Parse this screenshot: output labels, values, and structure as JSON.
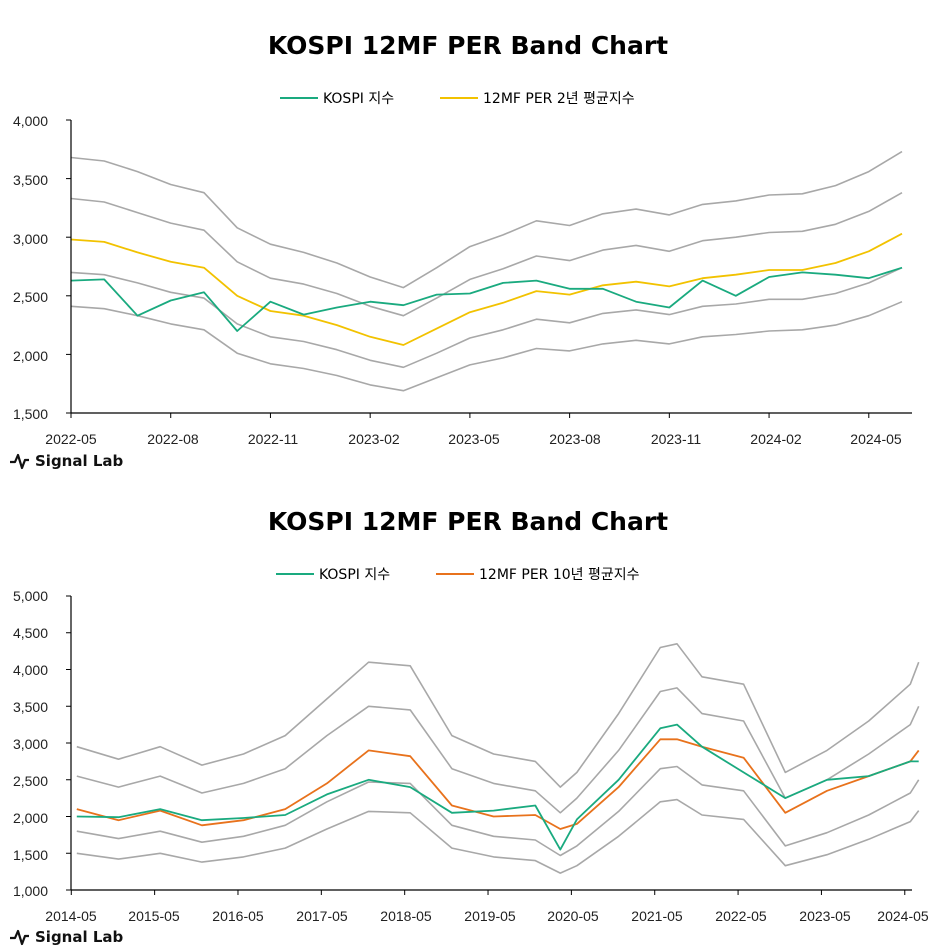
{
  "brand": {
    "name": "Signal Lab"
  },
  "charts": [
    {
      "title": "KOSPI 12MF PER Band Chart",
      "legend": [
        "KOSPI 지수",
        "12MF PER 2년 평균지수"
      ],
      "y_ticks": [
        "4,000",
        "3,500",
        "3,000",
        "2,500",
        "2,000",
        "1,500"
      ],
      "x_ticks": [
        "2022-05",
        "2022-08",
        "2022-11",
        "2023-02",
        "2023-05",
        "2023-08",
        "2023-11",
        "2024-02",
        "2024-05"
      ]
    },
    {
      "title": "KOSPI 12MF PER Band Chart",
      "legend": [
        "KOSPI 지수",
        "12MF PER 10년 평균지수"
      ],
      "y_ticks": [
        "5,000",
        "4,500",
        "4,000",
        "3,500",
        "3,000",
        "2,500",
        "2,000",
        "1,500",
        "1,000"
      ],
      "x_ticks": [
        "2014-05",
        "2015-05",
        "2016-05",
        "2017-05",
        "2018-05",
        "2019-05",
        "2020-05",
        "2021-05",
        "2022-05",
        "2023-05",
        "2024-05"
      ]
    }
  ],
  "colors": {
    "kospi": "#1aaa7f",
    "avg2y": "#f2c200",
    "avg10y": "#e8721c",
    "band": "#a8a8a8",
    "axis": "#000000"
  },
  "icons": {
    "brand_logo": "pulse-icon"
  },
  "chart_data": [
    {
      "type": "line",
      "title": "KOSPI 12MF PER Band Chart",
      "x_unit": "month",
      "x": [
        "2022-05",
        "2022-06",
        "2022-07",
        "2022-08",
        "2022-09",
        "2022-10",
        "2022-11",
        "2022-12",
        "2023-01",
        "2023-02",
        "2023-03",
        "2023-04",
        "2023-05",
        "2023-06",
        "2023-07",
        "2023-08",
        "2023-09",
        "2023-10",
        "2023-11",
        "2023-12",
        "2024-01",
        "2024-02",
        "2024-03",
        "2024-04",
        "2024-05",
        "2024-06"
      ],
      "ylim": [
        1500,
        4000
      ],
      "y_ticks": [
        1500,
        2000,
        2500,
        3000,
        3500,
        4000
      ],
      "series": [
        {
          "name": "KOSPI 지수",
          "color": "#1aaa7f",
          "values": [
            2630,
            2640,
            2330,
            2460,
            2530,
            2200,
            2450,
            2340,
            2400,
            2450,
            2420,
            2510,
            2520,
            2610,
            2630,
            2560,
            2560,
            2450,
            2400,
            2630,
            2500,
            2660,
            2700,
            2680,
            2650,
            2740
          ]
        },
        {
          "name": "12MF PER 2년 평균지수",
          "color": "#f2c200",
          "values": [
            2980,
            2960,
            2870,
            2790,
            2740,
            2500,
            2370,
            2330,
            2250,
            2150,
            2080,
            2220,
            2360,
            2440,
            2540,
            2510,
            2590,
            2620,
            2580,
            2650,
            2680,
            2720,
            2720,
            2780,
            2880,
            3030
          ]
        },
        {
          "name": "",
          "color": "#a8a8a8",
          "values": [
            3680,
            3650,
            3560,
            3450,
            3380,
            3080,
            2940,
            2870,
            2780,
            2660,
            2570,
            2740,
            2920,
            3020,
            3140,
            3100,
            3200,
            3240,
            3190,
            3280,
            3310,
            3360,
            3370,
            3440,
            3560,
            3730
          ]
        },
        {
          "name": "",
          "color": "#a8a8a8",
          "values": [
            3330,
            3300,
            3210,
            3120,
            3060,
            2790,
            2650,
            2600,
            2520,
            2410,
            2330,
            2480,
            2640,
            2730,
            2840,
            2800,
            2890,
            2930,
            2880,
            2970,
            3000,
            3040,
            3050,
            3110,
            3220,
            3380
          ]
        },
        {
          "name": "",
          "color": "#a8a8a8",
          "values": [
            2700,
            2680,
            2610,
            2530,
            2480,
            2260,
            2150,
            2110,
            2040,
            1950,
            1890,
            2010,
            2140,
            2210,
            2300,
            2270,
            2350,
            2380,
            2340,
            2410,
            2430,
            2470,
            2470,
            2520,
            2610,
            2740
          ]
        },
        {
          "name": "",
          "color": "#a8a8a8",
          "values": [
            2410,
            2390,
            2330,
            2260,
            2210,
            2010,
            1920,
            1880,
            1820,
            1740,
            1690,
            1800,
            1910,
            1970,
            2050,
            2030,
            2090,
            2120,
            2090,
            2150,
            2170,
            2200,
            2210,
            2250,
            2330,
            2450
          ]
        }
      ]
    },
    {
      "type": "line",
      "title": "KOSPI 12MF PER Band Chart",
      "x_unit": "year",
      "x": [
        2014.4,
        2014.9,
        2015.4,
        2015.9,
        2016.4,
        2016.9,
        2017.4,
        2017.9,
        2018.4,
        2018.9,
        2019.4,
        2019.9,
        2020.2,
        2020.4,
        2020.9,
        2021.4,
        2021.6,
        2021.9,
        2022.4,
        2022.9,
        2023.4,
        2023.9,
        2024.4,
        2024.5
      ],
      "ylim": [
        1000,
        5000
      ],
      "y_ticks": [
        1000,
        1500,
        2000,
        2500,
        3000,
        3500,
        4000,
        4500,
        5000
      ],
      "series": [
        {
          "name": "KOSPI 지수",
          "color": "#1aaa7f",
          "values": [
            2000,
            1990,
            2100,
            1950,
            1980,
            2020,
            2300,
            2500,
            2400,
            2050,
            2080,
            2150,
            1550,
            1960,
            2500,
            3200,
            3250,
            2950,
            2600,
            2250,
            2500,
            2550,
            2750,
            2750
          ]
        },
        {
          "name": "12MF PER 10년 평균지수",
          "color": "#e8721c",
          "values": [
            2100,
            1950,
            2080,
            1880,
            1950,
            2100,
            2450,
            2900,
            2820,
            2150,
            2000,
            2020,
            1830,
            1900,
            2400,
            3050,
            3050,
            2950,
            2800,
            2050,
            2350,
            2550,
            2750,
            2900
          ]
        },
        {
          "name": "",
          "color": "#a8a8a8",
          "values": [
            2950,
            2780,
            2950,
            2700,
            2850,
            3100,
            3600,
            4100,
            4050,
            3100,
            2850,
            2750,
            2400,
            2600,
            3400,
            4300,
            4350,
            3900,
            3800,
            2600,
            2900,
            3300,
            3800,
            4100
          ]
        },
        {
          "name": "",
          "color": "#a8a8a8",
          "values": [
            2550,
            2400,
            2550,
            2320,
            2450,
            2650,
            3100,
            3500,
            3450,
            2650,
            2450,
            2350,
            2050,
            2250,
            2900,
            3700,
            3750,
            3400,
            3300,
            2250,
            2500,
            2850,
            3250,
            3500
          ]
        },
        {
          "name": "",
          "color": "#a8a8a8",
          "values": [
            1800,
            1700,
            1800,
            1650,
            1730,
            1880,
            2200,
            2470,
            2450,
            1880,
            1730,
            1680,
            1470,
            1600,
            2070,
            2650,
            2680,
            2430,
            2350,
            1600,
            1780,
            2020,
            2320,
            2500
          ]
        },
        {
          "name": "",
          "color": "#a8a8a8",
          "values": [
            1500,
            1420,
            1500,
            1380,
            1450,
            1570,
            1830,
            2070,
            2050,
            1570,
            1450,
            1400,
            1230,
            1330,
            1730,
            2200,
            2230,
            2020,
            1960,
            1330,
            1480,
            1690,
            1930,
            2080
          ]
        }
      ]
    }
  ]
}
